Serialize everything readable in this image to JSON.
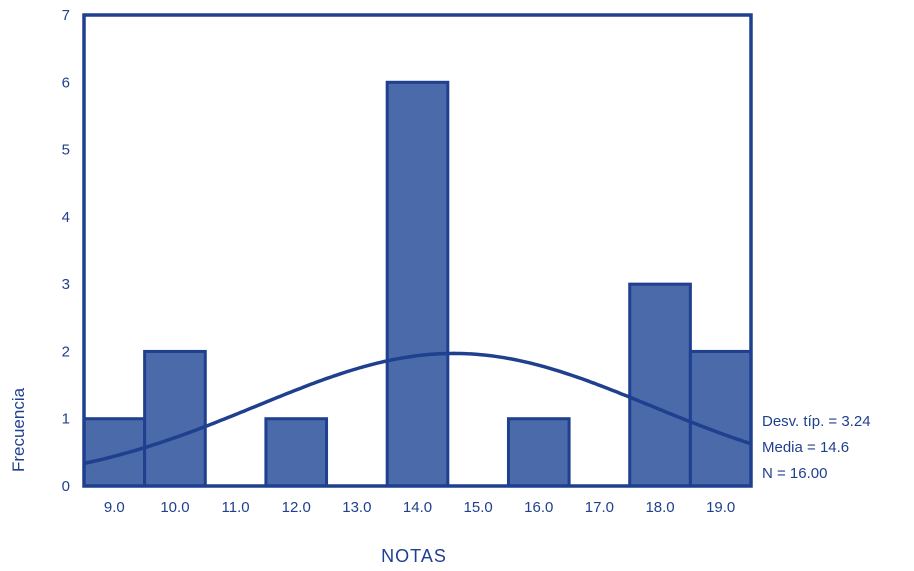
{
  "chart_data": {
    "type": "bar",
    "xlabel": "NOTAS",
    "ylabel": "Frecuencia",
    "ylim": [
      0,
      7
    ],
    "y_ticks": [
      "0",
      "1",
      "2",
      "3",
      "4",
      "5",
      "6",
      "7"
    ],
    "x_ticks": [
      "9.0",
      "10.0",
      "11.0",
      "12.0",
      "13.0",
      "14.0",
      "15.0",
      "16.0",
      "17.0",
      "18.0",
      "19.0"
    ],
    "bins": [
      {
        "x": 9,
        "count": 1
      },
      {
        "x": 10,
        "count": 2
      },
      {
        "x": 12,
        "count": 1
      },
      {
        "x": 14,
        "count": 6
      },
      {
        "x": 16,
        "count": 1
      },
      {
        "x": 18,
        "count": 3
      },
      {
        "x": 19,
        "count": 2
      }
    ],
    "normal_curve": {
      "mean": 14.6,
      "sd": 3.24,
      "n": 16
    },
    "stats": {
      "sd_label": "Desv. típ. = 3.24",
      "mean_label": "Media = 14.6",
      "n_label": "N = 16.00"
    },
    "colors": {
      "bar": "#4a6aaa",
      "line": "#1f3f8f",
      "text": "#1f3f8f"
    }
  }
}
